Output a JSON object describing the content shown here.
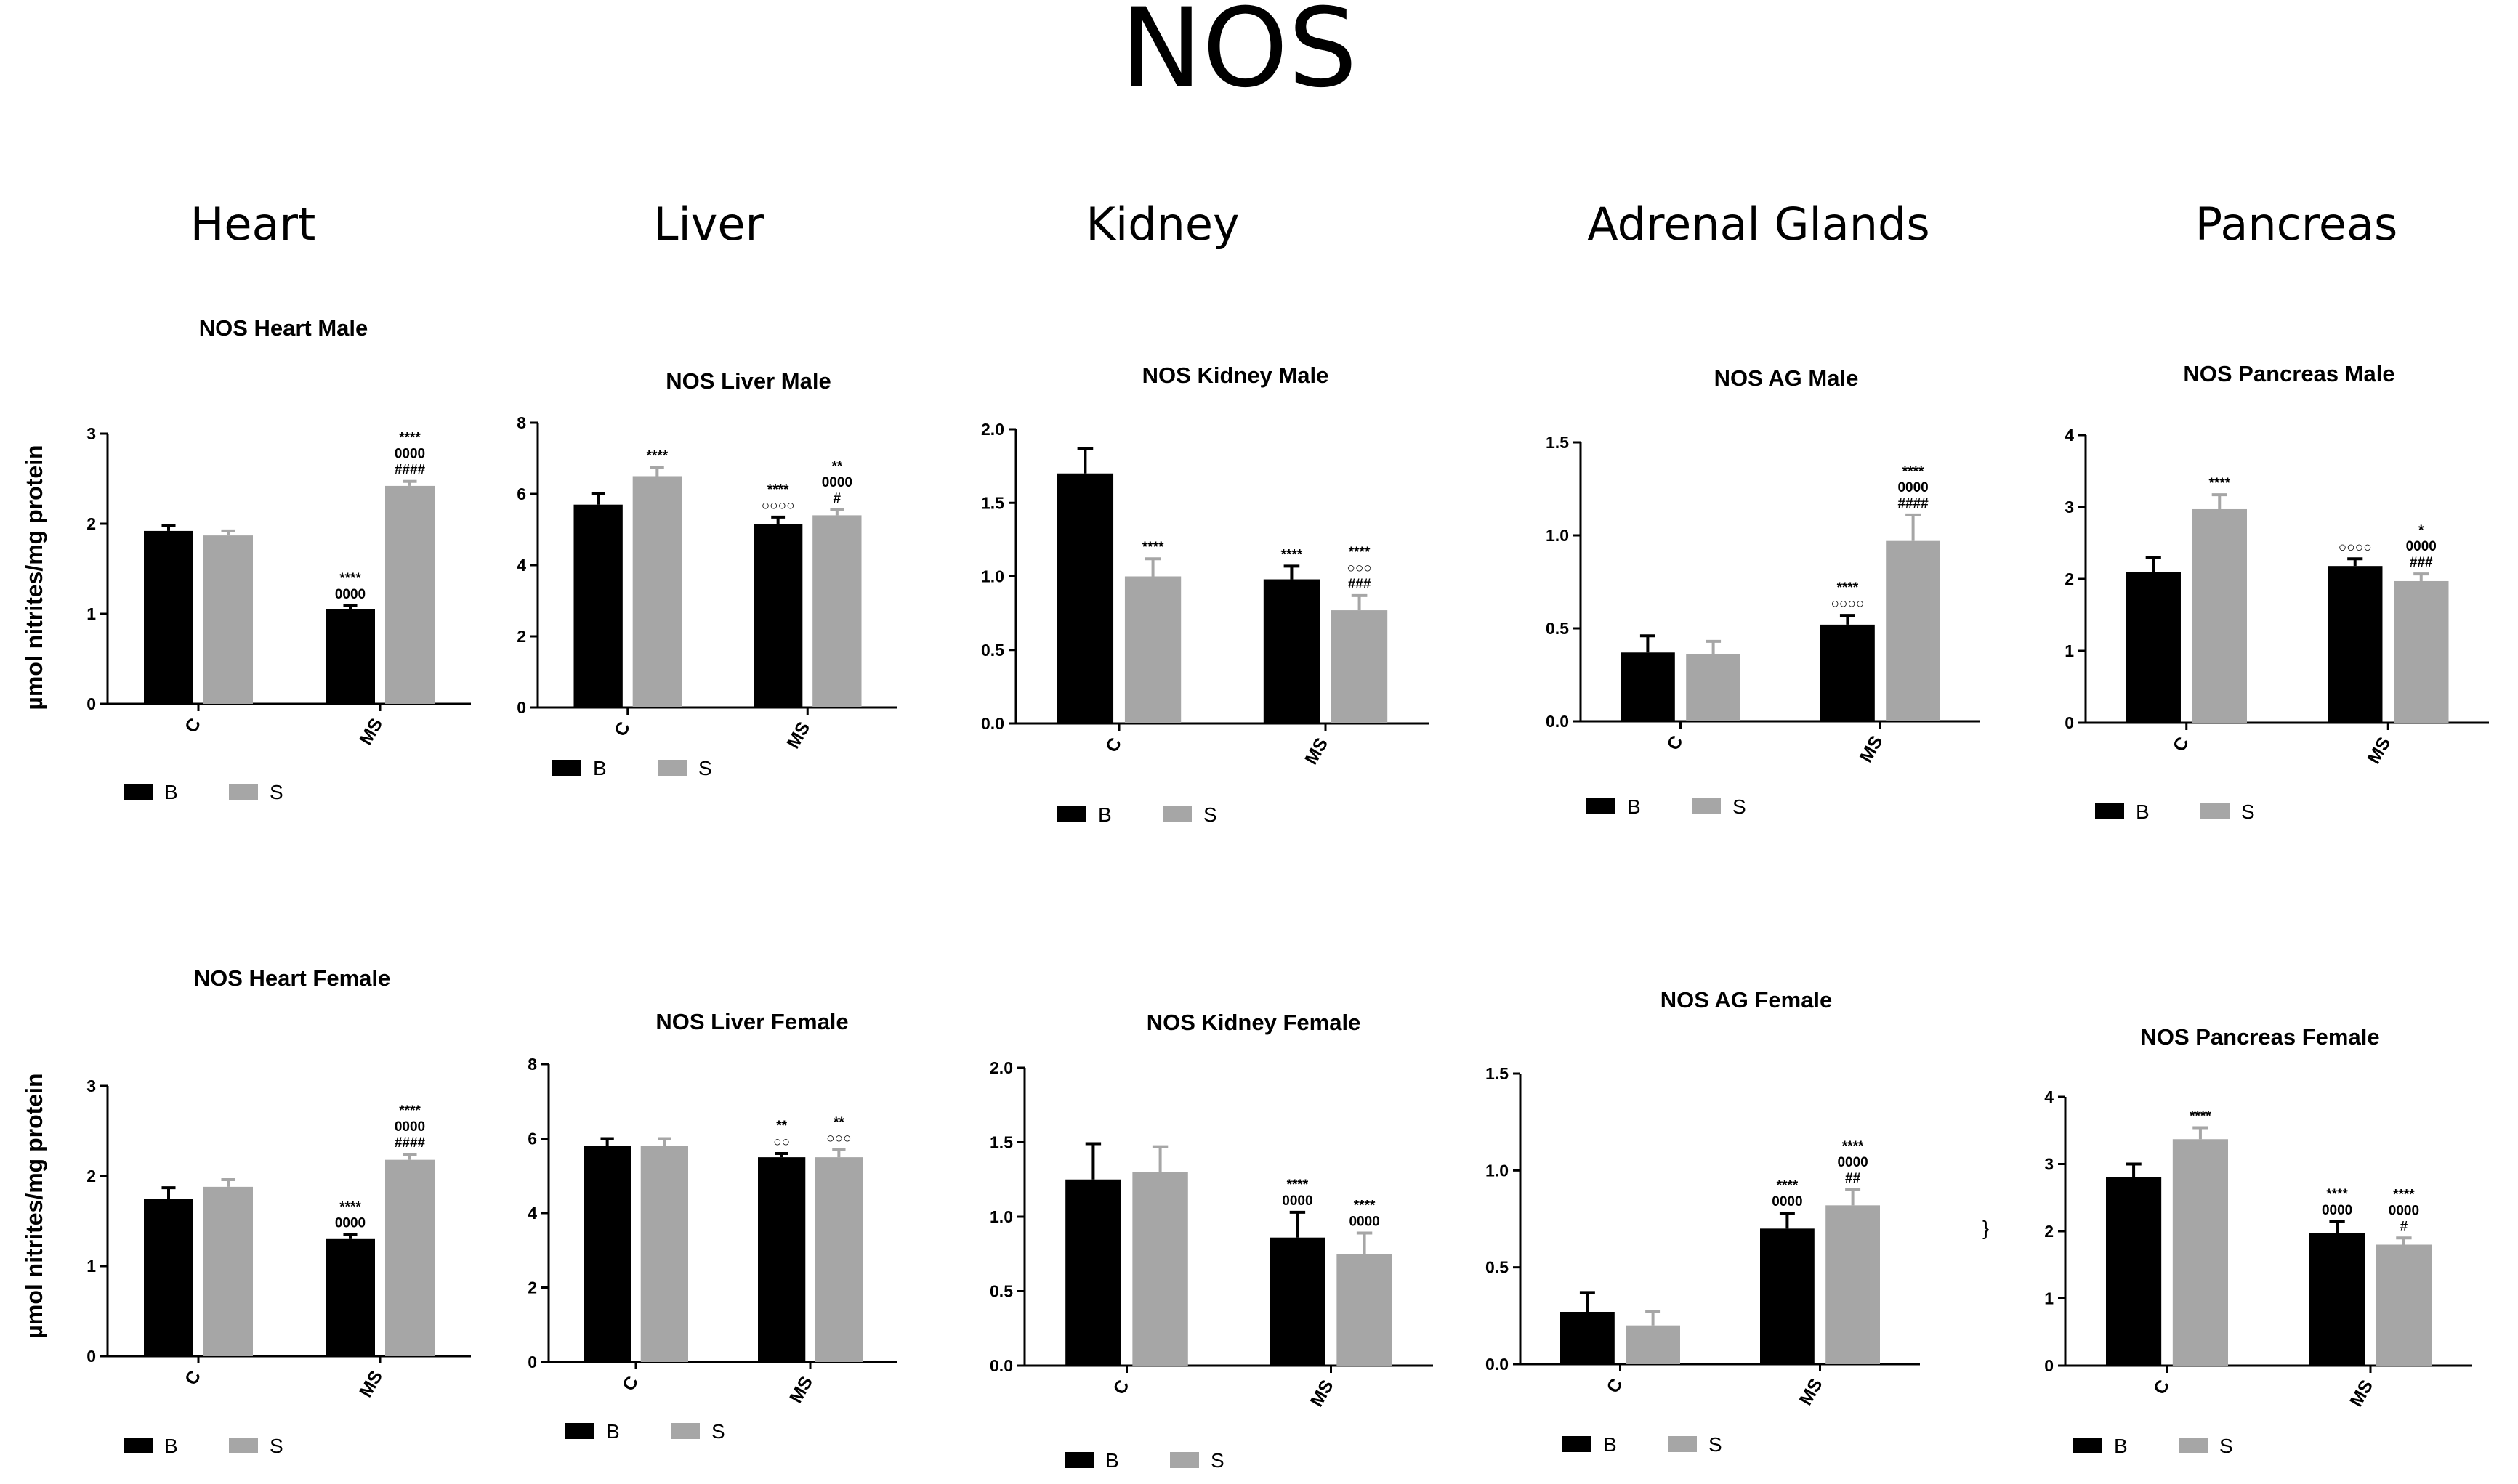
{
  "figure": {
    "title": "NOS",
    "organ_headings": [
      "Heart",
      "Liver",
      "Kidney",
      "Adrenal Glands",
      "Pancreas"
    ],
    "ylabel": "µmol nitrites/mg protein",
    "stray_mark": "}",
    "colors": {
      "B": "#000000",
      "S": "#a6a6a6"
    }
  },
  "chart_data": [
    {
      "type": "bar",
      "title": "NOS Heart Male",
      "categories": [
        "C",
        "MS"
      ],
      "ylim": [
        0,
        3
      ],
      "yticks": [
        "0",
        "1",
        "2",
        "3"
      ],
      "series": [
        {
          "name": "B",
          "values": [
            1.92,
            1.05
          ],
          "errors": [
            0.06,
            0.04
          ]
        },
        {
          "name": "S",
          "values": [
            1.87,
            2.42
          ],
          "errors": [
            0.05,
            0.05
          ]
        }
      ],
      "annotations": [
        [
          [],
          [
            "****",
            "0000"
          ]
        ],
        [
          [],
          [
            "****",
            "0000",
            "####"
          ]
        ]
      ]
    },
    {
      "type": "bar",
      "title": "NOS Liver Male",
      "categories": [
        "C",
        "MS"
      ],
      "ylim": [
        0,
        8
      ],
      "yticks": [
        "0",
        "2",
        "4",
        "6",
        "8"
      ],
      "series": [
        {
          "name": "B",
          "values": [
            5.7,
            5.15
          ],
          "errors": [
            0.3,
            0.2
          ]
        },
        {
          "name": "S",
          "values": [
            6.5,
            5.4
          ],
          "errors": [
            0.25,
            0.15
          ]
        }
      ],
      "annotations": [
        [
          [],
          [
            "****",
            "○○○○"
          ]
        ],
        [
          [
            "****"
          ],
          [
            "**",
            "0000",
            "#"
          ]
        ]
      ]
    },
    {
      "type": "bar",
      "title": "NOS Kidney Male",
      "categories": [
        "C",
        "MS"
      ],
      "ylim": [
        0,
        2.0
      ],
      "yticks": [
        "0.0",
        "0.5",
        "1.0",
        "1.5",
        "2.0"
      ],
      "series": [
        {
          "name": "B",
          "values": [
            1.7,
            0.98
          ],
          "errors": [
            0.17,
            0.09
          ]
        },
        {
          "name": "S",
          "values": [
            1.0,
            0.77
          ],
          "errors": [
            0.12,
            0.1
          ]
        }
      ],
      "annotations": [
        [
          [],
          [
            "****"
          ]
        ],
        [
          [
            "****"
          ],
          [
            "****",
            "○○○",
            "###"
          ]
        ]
      ]
    },
    {
      "type": "bar",
      "title": "NOS AG Male",
      "categories": [
        "C",
        "MS"
      ],
      "ylim": [
        0,
        1.5
      ],
      "yticks": [
        "0.0",
        "0.5",
        "1.0",
        "1.5"
      ],
      "series": [
        {
          "name": "B",
          "values": [
            0.37,
            0.52
          ],
          "errors": [
            0.09,
            0.05
          ]
        },
        {
          "name": "S",
          "values": [
            0.36,
            0.97
          ],
          "errors": [
            0.07,
            0.14
          ]
        }
      ],
      "annotations": [
        [
          [],
          [
            "****",
            "○○○○"
          ]
        ],
        [
          [],
          [
            "****",
            "0000",
            "####"
          ]
        ]
      ]
    },
    {
      "type": "bar",
      "title": "NOS Pancreas Male",
      "categories": [
        "C",
        "MS"
      ],
      "ylim": [
        0,
        4
      ],
      "yticks": [
        "0",
        "1",
        "2",
        "3",
        "4"
      ],
      "series": [
        {
          "name": "B",
          "values": [
            2.1,
            2.18
          ],
          "errors": [
            0.2,
            0.1
          ]
        },
        {
          "name": "S",
          "values": [
            2.97,
            1.97
          ],
          "errors": [
            0.2,
            0.1
          ]
        }
      ],
      "annotations": [
        [
          [],
          [
            "○○○○"
          ]
        ],
        [
          [
            "****"
          ],
          [
            "*",
            "0000",
            "###"
          ]
        ]
      ]
    },
    {
      "type": "bar",
      "title": "NOS Heart Female",
      "categories": [
        "C",
        "MS"
      ],
      "ylim": [
        0,
        3
      ],
      "yticks": [
        "0",
        "1",
        "2",
        "3"
      ],
      "series": [
        {
          "name": "B",
          "values": [
            1.75,
            1.3
          ],
          "errors": [
            0.12,
            0.05
          ]
        },
        {
          "name": "S",
          "values": [
            1.88,
            2.18
          ],
          "errors": [
            0.08,
            0.06
          ]
        }
      ],
      "annotations": [
        [
          [],
          [
            "****",
            "0000"
          ]
        ],
        [
          [],
          [
            "****",
            "0000",
            "####"
          ]
        ]
      ]
    },
    {
      "type": "bar",
      "title": "NOS Liver Female",
      "categories": [
        "C",
        "MS"
      ],
      "ylim": [
        0,
        8
      ],
      "yticks": [
        "0",
        "2",
        "4",
        "6",
        "8"
      ],
      "series": [
        {
          "name": "B",
          "values": [
            5.8,
            5.5
          ],
          "errors": [
            0.2,
            0.1
          ]
        },
        {
          "name": "S",
          "values": [
            5.8,
            5.5
          ],
          "errors": [
            0.2,
            0.2
          ]
        }
      ],
      "annotations": [
        [
          [],
          [
            "**",
            "○○"
          ]
        ],
        [
          [],
          [
            "**",
            "○○○"
          ]
        ]
      ]
    },
    {
      "type": "bar",
      "title": "NOS Kidney Female",
      "categories": [
        "C",
        "MS"
      ],
      "ylim": [
        0,
        2.0
      ],
      "yticks": [
        "0.0",
        "0.5",
        "1.0",
        "1.5",
        "2.0"
      ],
      "series": [
        {
          "name": "B",
          "values": [
            1.25,
            0.86
          ],
          "errors": [
            0.24,
            0.17
          ]
        },
        {
          "name": "S",
          "values": [
            1.3,
            0.75
          ],
          "errors": [
            0.17,
            0.14
          ]
        }
      ],
      "annotations": [
        [
          [],
          [
            "****",
            "0000"
          ]
        ],
        [
          [],
          [
            "****",
            "0000"
          ]
        ]
      ]
    },
    {
      "type": "bar",
      "title": "NOS AG Female",
      "categories": [
        "C",
        "MS"
      ],
      "ylim": [
        0,
        1.5
      ],
      "yticks": [
        "0.0",
        "0.5",
        "1.0",
        "1.5"
      ],
      "series": [
        {
          "name": "B",
          "values": [
            0.27,
            0.7
          ],
          "errors": [
            0.1,
            0.08
          ]
        },
        {
          "name": "S",
          "values": [
            0.2,
            0.82
          ],
          "errors": [
            0.07,
            0.08
          ]
        }
      ],
      "annotations": [
        [
          [],
          [
            "****",
            "0000"
          ]
        ],
        [
          [],
          [
            "****",
            "0000",
            "##"
          ]
        ]
      ]
    },
    {
      "type": "bar",
      "title": "NOS Pancreas Female",
      "categories": [
        "C",
        "MS"
      ],
      "ylim": [
        0,
        4
      ],
      "yticks": [
        "0",
        "1",
        "2",
        "3",
        "4"
      ],
      "series": [
        {
          "name": "B",
          "values": [
            2.8,
            1.97
          ],
          "errors": [
            0.2,
            0.17
          ]
        },
        {
          "name": "S",
          "values": [
            3.37,
            1.8
          ],
          "errors": [
            0.17,
            0.1
          ]
        }
      ],
      "annotations": [
        [
          [],
          [
            "****",
            "0000"
          ]
        ],
        [
          [
            "****"
          ],
          [
            "****",
            "0000",
            "#"
          ]
        ]
      ]
    }
  ]
}
